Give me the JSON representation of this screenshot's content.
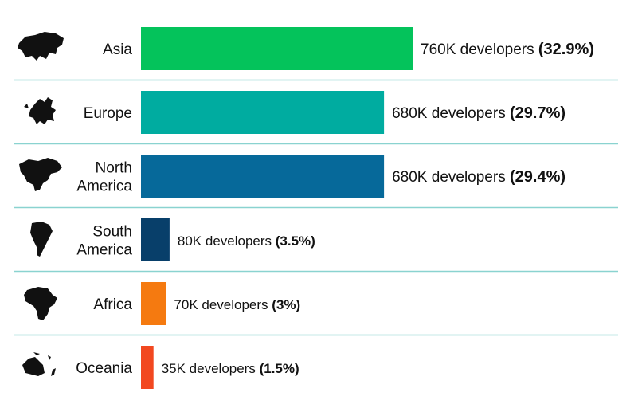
{
  "chart_data": {
    "type": "bar",
    "orientation": "horizontal",
    "title": "",
    "xlabel": "",
    "ylabel": "",
    "grid": false,
    "legend": "none",
    "categories": [
      {
        "lines": [
          "Asia"
        ],
        "icon": "asia-map-icon"
      },
      {
        "lines": [
          "Europe"
        ],
        "icon": "europe-map-icon"
      },
      {
        "lines": [
          "North",
          "America"
        ],
        "icon": "north-america-map-icon"
      },
      {
        "lines": [
          "South",
          "America"
        ],
        "icon": "south-america-map-icon"
      },
      {
        "lines": [
          "Africa"
        ],
        "icon": "africa-map-icon"
      },
      {
        "lines": [
          "Oceania"
        ],
        "icon": "oceania-map-icon"
      }
    ],
    "values": [
      760,
      680,
      680,
      80,
      70,
      35
    ],
    "value_labels": [
      "760K developers",
      "680K developers",
      "680K developers",
      "80K developers",
      "70K developers",
      "35K developers"
    ],
    "percent_labels": [
      "(32.9%)",
      "(29.7%)",
      "(29.4%)",
      "(3.5%)",
      "(3%)",
      "(1.5%)"
    ],
    "colors": [
      "#04c35b",
      "#00aca0",
      "#06699a",
      "#083f6a",
      "#f57a10",
      "#f24820"
    ],
    "separator_color": "#8ad3d0"
  }
}
